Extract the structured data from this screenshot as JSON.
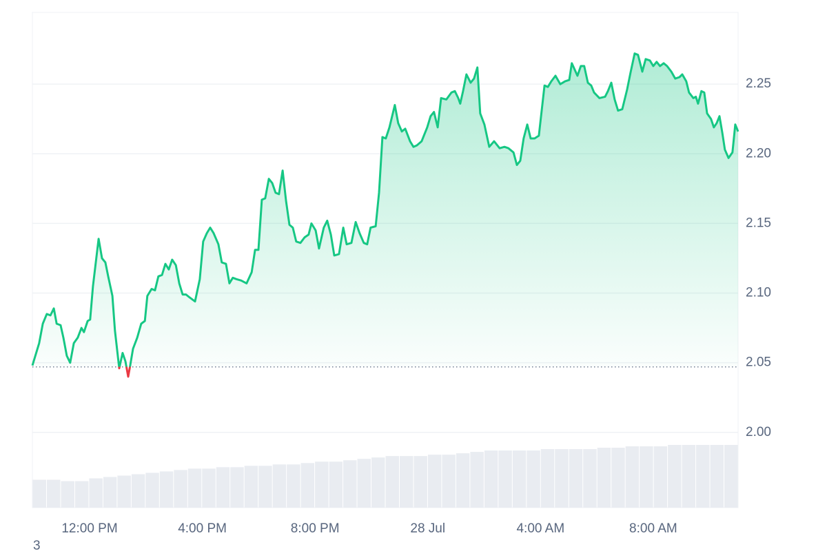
{
  "chart_data": {
    "type": "line",
    "x": [
      9.97,
      10.21,
      10.34,
      10.48,
      10.61,
      10.73,
      10.83,
      10.97,
      11.07,
      11.19,
      11.31,
      11.44,
      11.58,
      11.71,
      11.8,
      11.93,
      12.02,
      12.12,
      12.32,
      12.44,
      12.56,
      12.66,
      12.81,
      12.9,
      13.05,
      13.17,
      13.27,
      13.37,
      13.44,
      13.54,
      13.69,
      13.83,
      13.96,
      14.05,
      14.2,
      14.32,
      14.44,
      14.57,
      14.69,
      14.81,
      14.93,
      15.06,
      15.18,
      15.3,
      15.42,
      15.54,
      15.74,
      15.91,
      16.03,
      16.16,
      16.28,
      16.4,
      16.57,
      16.69,
      16.84,
      16.96,
      17.08,
      17.21,
      17.38,
      17.57,
      17.75,
      17.87,
      17.99,
      18.11,
      18.23,
      18.36,
      18.48,
      18.6,
      18.72,
      18.85,
      18.97,
      19.09,
      19.21,
      19.33,
      19.48,
      19.63,
      19.77,
      19.87,
      20.02,
      20.14,
      20.31,
      20.43,
      20.56,
      20.68,
      20.85,
      21.0,
      21.12,
      21.29,
      21.44,
      21.58,
      21.73,
      21.85,
      21.97,
      22.15,
      22.27,
      22.39,
      22.51,
      22.64,
      22.83,
      22.95,
      23.08,
      23.2,
      23.37,
      23.49,
      23.61,
      23.78,
      23.98,
      24.1,
      24.22,
      24.35,
      24.47,
      24.66,
      24.84,
      24.96,
      25.08,
      25.15,
      25.25,
      25.37,
      25.52,
      25.64,
      25.76,
      25.86,
      26.01,
      26.18,
      26.35,
      26.55,
      26.72,
      26.86,
      27.04,
      27.16,
      27.28,
      27.4,
      27.53,
      27.65,
      27.79,
      27.94,
      28.14,
      28.26,
      28.38,
      28.53,
      28.7,
      28.87,
      29.02,
      29.11,
      29.31,
      29.43,
      29.55,
      29.68,
      29.8,
      29.9,
      30.09,
      30.29,
      30.39,
      30.51,
      30.63,
      30.75,
      30.9,
      31.07,
      31.19,
      31.34,
      31.46,
      31.61,
      31.73,
      31.88,
      32.0,
      32.12,
      32.24,
      32.37,
      32.49,
      32.64,
      32.78,
      32.93,
      33.03,
      33.17,
      33.27,
      33.42,
      33.51,
      33.59,
      33.71,
      33.81,
      33.91,
      34.05,
      34.15,
      34.25,
      34.35,
      34.45,
      34.54,
      34.67,
      34.81,
      34.91,
      35.01
    ],
    "values": [
      2.048,
      2.064,
      2.078,
      2.085,
      2.084,
      2.089,
      2.078,
      2.077,
      2.068,
      2.055,
      2.05,
      2.064,
      2.068,
      2.075,
      2.072,
      2.08,
      2.081,
      2.105,
      2.139,
      2.125,
      2.122,
      2.112,
      2.098,
      2.073,
      2.046,
      2.057,
      2.051,
      2.04,
      2.048,
      2.06,
      2.068,
      2.078,
      2.08,
      2.098,
      2.103,
      2.102,
      2.112,
      2.113,
      2.121,
      2.117,
      2.124,
      2.12,
      2.107,
      2.099,
      2.099,
      2.097,
      2.094,
      2.11,
      2.137,
      2.143,
      2.147,
      2.143,
      2.135,
      2.122,
      2.121,
      2.107,
      2.111,
      2.11,
      2.109,
      2.107,
      2.115,
      2.131,
      2.131,
      2.167,
      2.168,
      2.182,
      2.179,
      2.172,
      2.171,
      2.188,
      2.166,
      2.149,
      2.147,
      2.137,
      2.136,
      2.14,
      2.142,
      2.15,
      2.145,
      2.132,
      2.147,
      2.152,
      2.142,
      2.127,
      2.128,
      2.147,
      2.135,
      2.136,
      2.151,
      2.143,
      2.136,
      2.135,
      2.147,
      2.148,
      2.172,
      2.212,
      2.211,
      2.219,
      2.235,
      2.222,
      2.216,
      2.218,
      2.209,
      2.205,
      2.206,
      2.209,
      2.219,
      2.227,
      2.23,
      2.219,
      2.24,
      2.239,
      2.244,
      2.245,
      2.24,
      2.236,
      2.245,
      2.257,
      2.251,
      2.254,
      2.262,
      2.229,
      2.221,
      2.205,
      2.209,
      2.204,
      2.205,
      2.204,
      2.201,
      2.192,
      2.195,
      2.211,
      2.221,
      2.211,
      2.211,
      2.213,
      2.249,
      2.248,
      2.252,
      2.256,
      2.25,
      2.252,
      2.253,
      2.265,
      2.256,
      2.263,
      2.263,
      2.251,
      2.249,
      2.244,
      2.24,
      2.241,
      2.245,
      2.251,
      2.239,
      2.231,
      2.232,
      2.246,
      2.258,
      2.272,
      2.271,
      2.259,
      2.268,
      2.267,
      2.263,
      2.266,
      2.263,
      2.265,
      2.263,
      2.259,
      2.254,
      2.255,
      2.257,
      2.252,
      2.244,
      2.24,
      2.241,
      2.236,
      2.245,
      2.244,
      2.229,
      2.225,
      2.219,
      2.222,
      2.227,
      2.215,
      2.203,
      2.197,
      2.201,
      2.221,
      2.216
    ],
    "color": "#16c784",
    "below_color": "#ea3943",
    "baseline": 2.047,
    "volume": {
      "color": "#e9ecf1",
      "values": [
        1.966,
        1.966,
        1.965,
        1.965,
        1.967,
        1.968,
        1.969,
        1.97,
        1.971,
        1.972,
        1.973,
        1.974,
        1.974,
        1.975,
        1.975,
        1.976,
        1.976,
        1.977,
        1.977,
        1.978,
        1.979,
        1.979,
        1.98,
        1.981,
        1.982,
        1.983,
        1.983,
        1.983,
        1.984,
        1.984,
        1.985,
        1.986,
        1.987,
        1.987,
        1.987,
        1.987,
        1.988,
        1.988,
        1.988,
        1.988,
        1.989,
        1.989,
        1.99,
        1.99,
        1.99,
        1.991,
        1.991,
        1.991,
        1.991,
        1.991
      ]
    },
    "xlim": [
      9.97,
      35.01
    ],
    "xticks": [
      {
        "value": 12,
        "label": "12:00 PM"
      },
      {
        "value": 16,
        "label": "4:00 PM"
      },
      {
        "value": 20,
        "label": "8:00 PM"
      },
      {
        "value": 24,
        "label": "28 Jul"
      },
      {
        "value": 28,
        "label": "4:00 AM"
      },
      {
        "value": 32,
        "label": "8:00 AM"
      }
    ],
    "ylim": [
      1.946,
      2.3015
    ],
    "yticks": [
      {
        "value": 2.0,
        "label": "2.00"
      },
      {
        "value": 2.05,
        "label": "2.05"
      },
      {
        "value": 2.1,
        "label": "2.10"
      },
      {
        "value": 2.15,
        "label": "2.15"
      },
      {
        "value": 2.2,
        "label": "2.20"
      },
      {
        "value": 2.25,
        "label": "2.25"
      }
    ],
    "grid": true,
    "corner_text": "3"
  }
}
